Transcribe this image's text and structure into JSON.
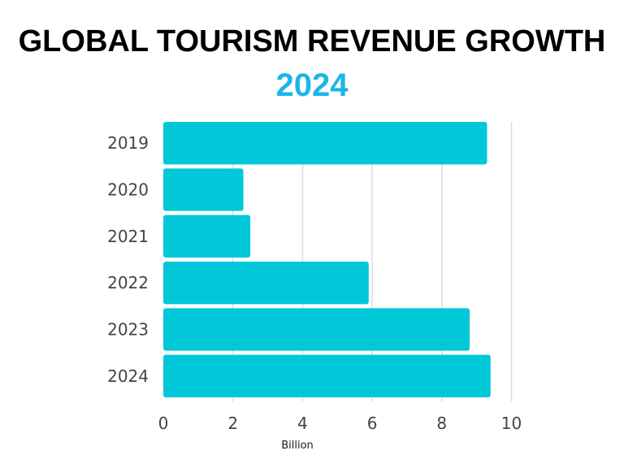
{
  "title": "GLOBAL TOURISM REVENUE GROWTH",
  "subtitle": "2024",
  "colors": {
    "bar": "#00c8d8",
    "subtitle": "#1ab6e8",
    "grid": "#dddddd"
  },
  "chart_data": {
    "type": "bar",
    "orientation": "horizontal",
    "title": "GLOBAL TOURISM REVENUE GROWTH",
    "subtitle": "2024",
    "categories": [
      "2019",
      "2020",
      "2021",
      "2022",
      "2023",
      "2024"
    ],
    "values": [
      9.3,
      2.3,
      2.5,
      5.9,
      8.8,
      9.4
    ],
    "xlabel": "Billion",
    "ylabel": "",
    "xlim": [
      0,
      10
    ],
    "xticks": [
      "0",
      "2",
      "4",
      "6",
      "8",
      "10"
    ],
    "grid": "vertical"
  }
}
